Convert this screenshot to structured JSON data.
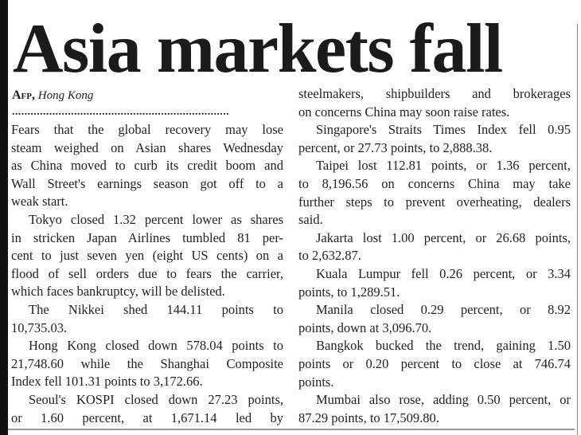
{
  "headline": "Asia markets fall",
  "byline": {
    "agency": "Afp,",
    "place": "Hong Kong"
  },
  "separator": "......................................................................",
  "columns": [
    [
      [
        "Fears that the global recovery may lose",
        "steam weighed on Asian shares Wednesday",
        "as China moved to curb its credit boom and",
        "Wall Street's earnings season got off to a",
        "weak start."
      ],
      [
        "Tokyo closed 1.32 percent lower as shares",
        "in stricken Japan Airlines tumbled 81 per-",
        "cent to just seven yen (eight US cents) on a",
        "flood of sell orders due to fears the carrier,",
        "which faces bankruptcy, will be delisted."
      ],
      [
        "The Nikkei shed 144.11 points to",
        "10,735.03."
      ],
      [
        "Hong Kong closed down 578.04 points to",
        "21,748.60 while the Shanghai Composite",
        "Index fell 101.31 points to 3,172.66."
      ],
      [
        "Seoul's KOSPI closed down 27.23 points,",
        "or 1.60 percent, at 1,671.14 led by"
      ]
    ],
    [
      [
        "steelmakers, shipbuilders and brokerages",
        "on concerns China may soon raise rates."
      ],
      [
        "Singapore's Straits Times Index fell 0.95",
        "percent, or 27.73 points, to 2,888.38."
      ],
      [
        "Taipei lost 112.81 points, or 1.36 percent,",
        "to 8,196.56 on concerns China may take",
        "further steps to prevent overheating, dealers",
        "said."
      ],
      [
        "Jakarta lost 1.00 percent, or 26.68 points,",
        "to 2,632.87."
      ],
      [
        "Kuala Lumpur fell 0.26 percent, or 3.34",
        "points, to 1,289.51."
      ],
      [
        "Manila closed 0.29 percent, or 8.92",
        "points, down at 3,096.70."
      ],
      [
        "Bangkok bucked the trend, gaining 1.50",
        "points or 0.20 percent to close at 746.74",
        "points."
      ],
      [
        "Mumbai also rose, adding 0.50 percent, or",
        "87.29 points, to 17,509.80."
      ]
    ]
  ]
}
